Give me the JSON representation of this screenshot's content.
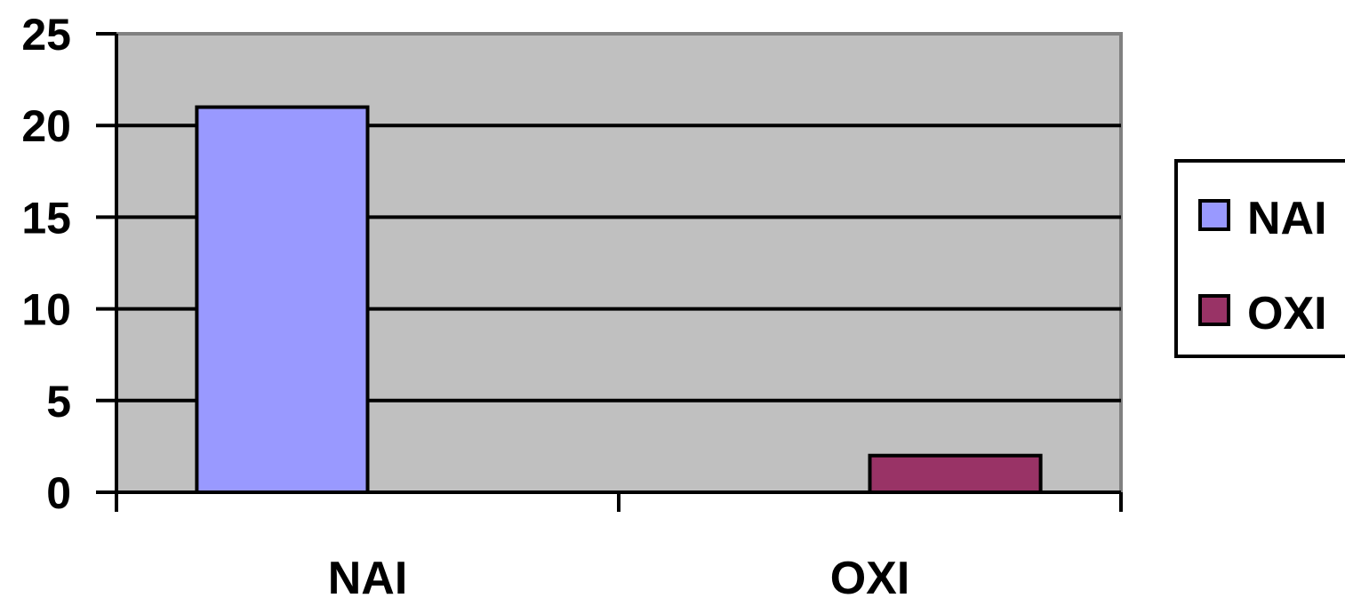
{
  "chart_data": {
    "type": "bar",
    "title": "",
    "xlabel": "",
    "ylabel": "",
    "categories": [
      "NAI",
      "OXI"
    ],
    "series": [
      {
        "name": "NAI",
        "values": [
          21,
          null
        ],
        "color": "#9999ff"
      },
      {
        "name": "OXI",
        "values": [
          null,
          2
        ],
        "color": "#993366"
      }
    ],
    "ylim": [
      0,
      25
    ],
    "yticks": [
      "0",
      "5",
      "10",
      "15",
      "20",
      "25"
    ],
    "grid": true,
    "plot_background": "#c0c0c0",
    "legend_position": "right"
  }
}
